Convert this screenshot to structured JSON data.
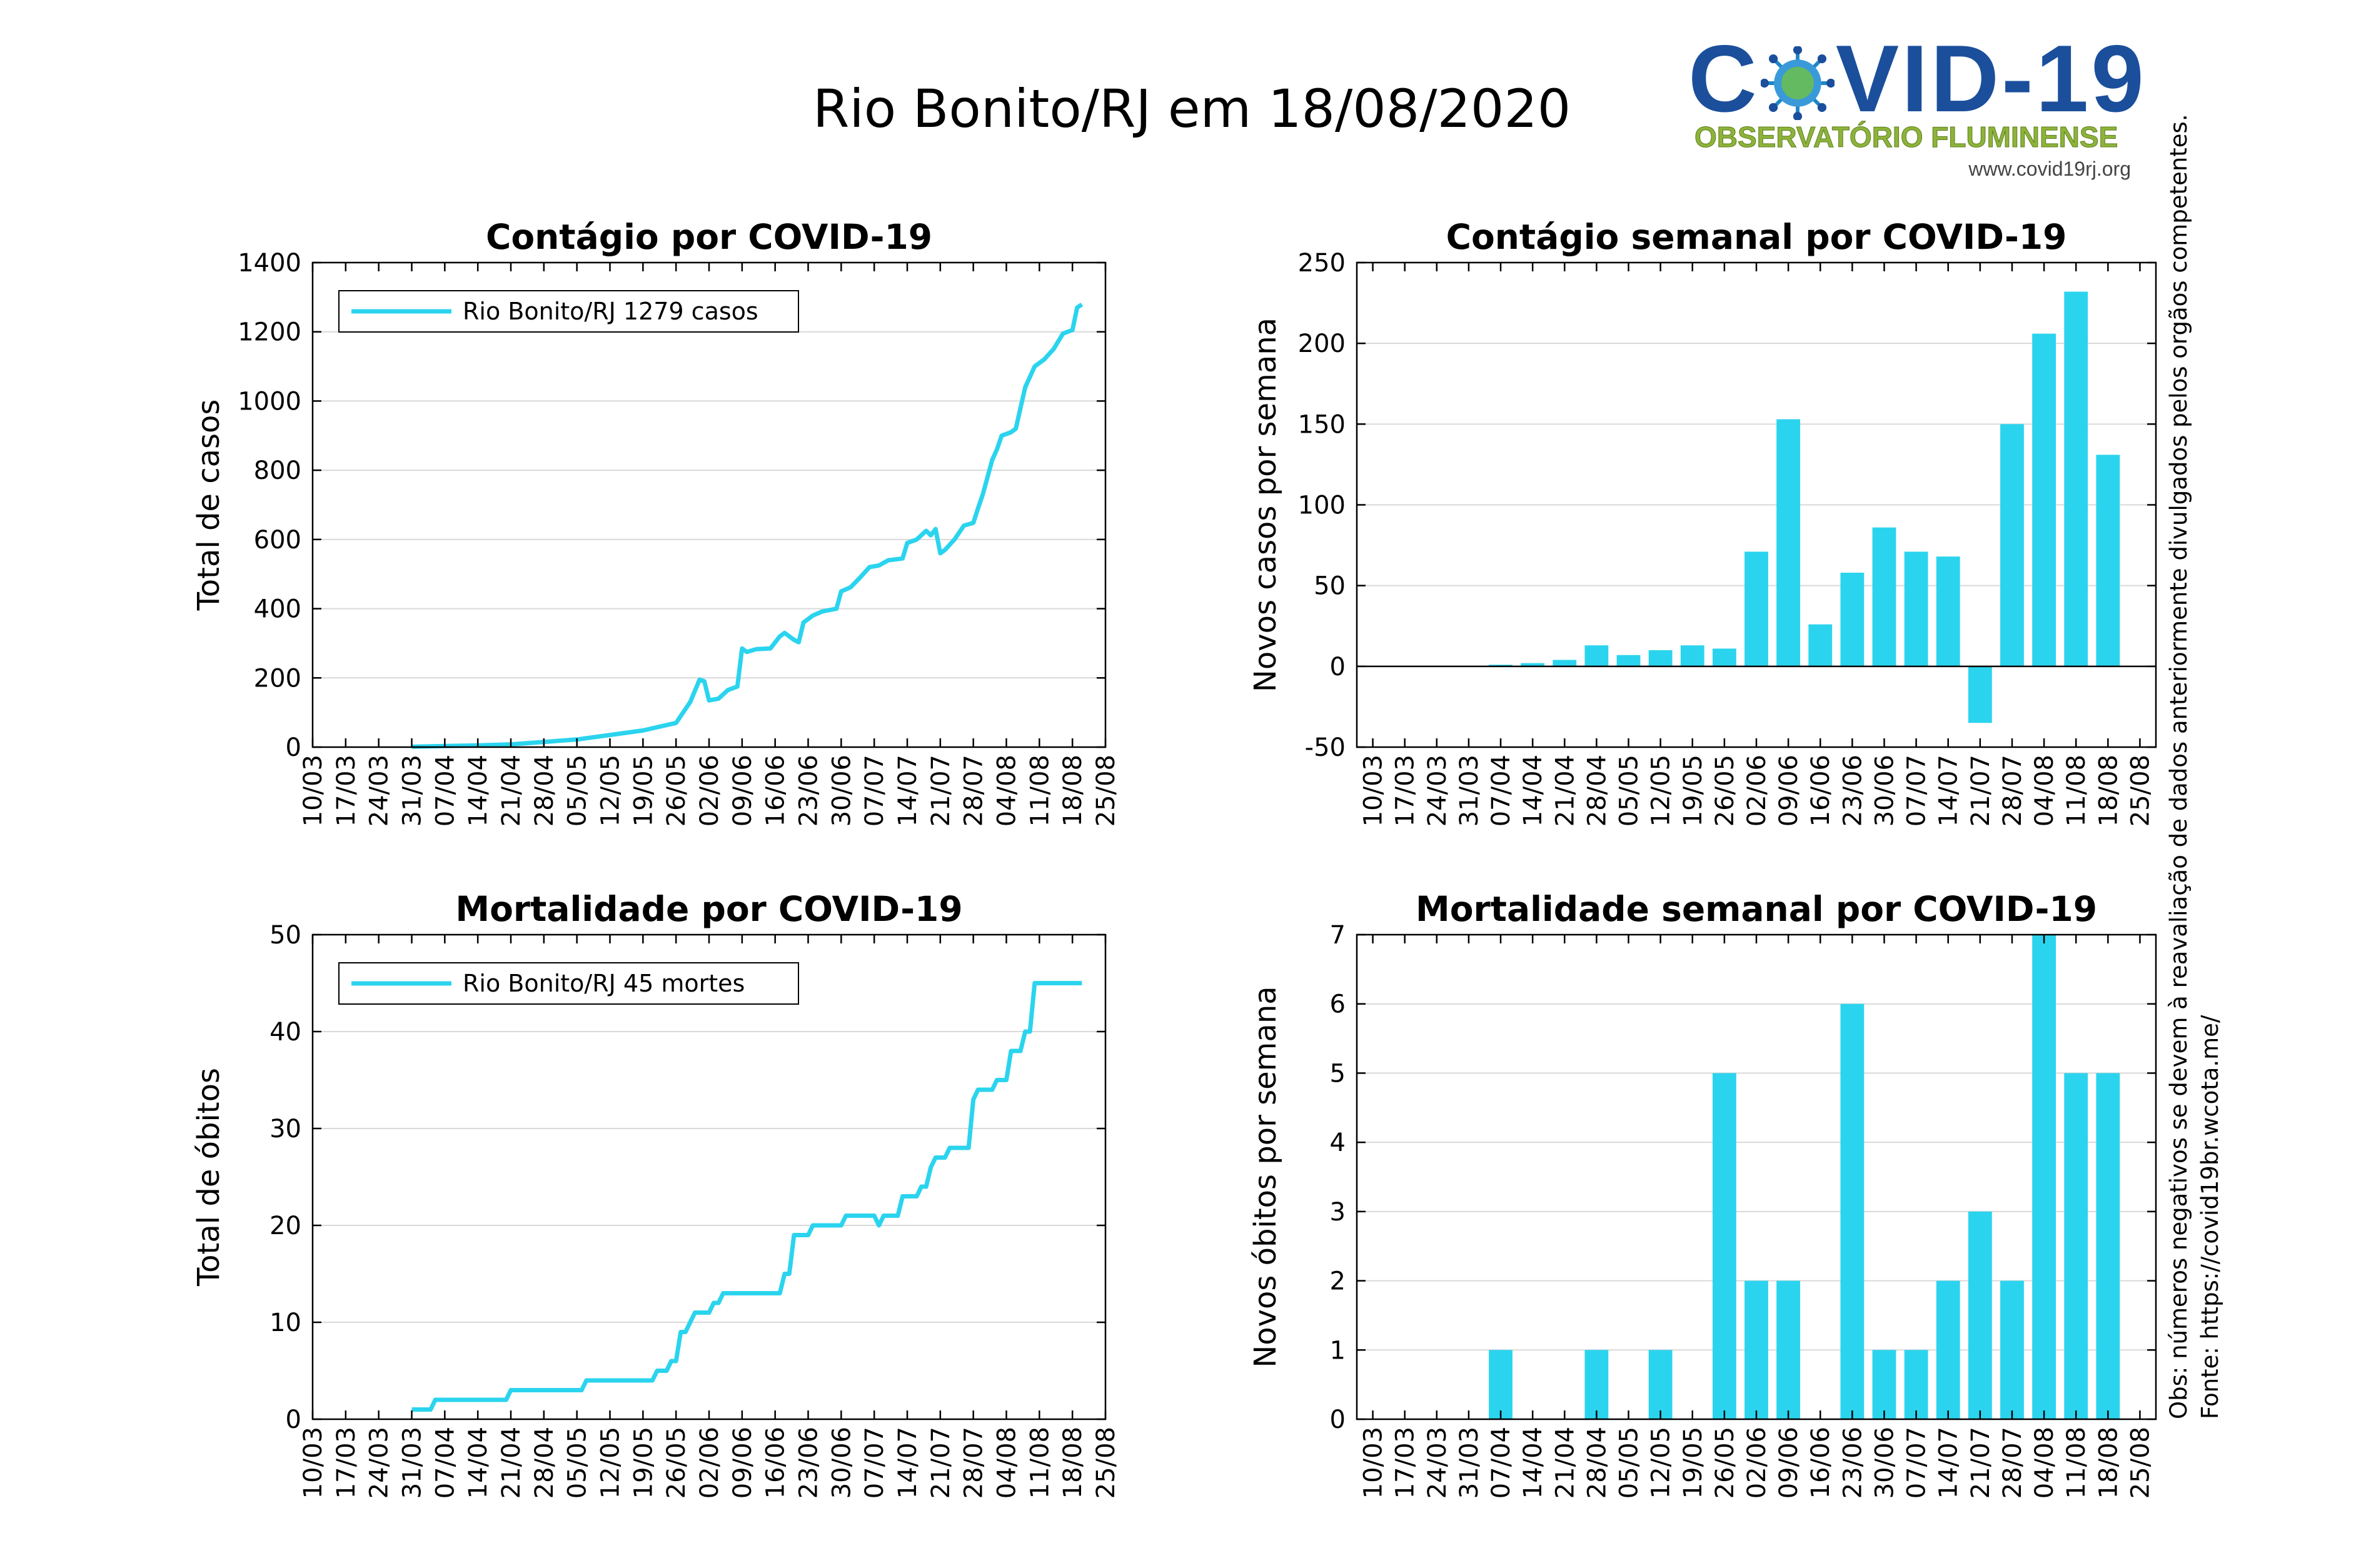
{
  "title": "Rio Bonito/RJ em 18/08/2020",
  "logo": {
    "main_before": "C",
    "main_after": "VID-19",
    "subtitle": "OBSERVATÓRIO FLUMINENSE",
    "url": "www.covid19rj.org",
    "virus_icon": "coronavirus-icon"
  },
  "notes": {
    "source": "Fonte: https://covid19br.wcota.me/",
    "obs": "Obs: números negativos se devem à reavaliação de dados anteriormente divulgados pelos orgãos competentes."
  },
  "colors": {
    "series": "#2bd4ee",
    "grid": "#d9d9d9",
    "axis": "#000000"
  },
  "chart_data": [
    {
      "id": "cum-cases",
      "type": "line",
      "title": "Contágio por COVID-19",
      "ylabel": "Total de casos",
      "ylim": [
        0,
        1400
      ],
      "yticks": [
        0,
        200,
        400,
        600,
        800,
        1000,
        1200,
        1400
      ],
      "x_ticks": [
        "10/03",
        "17/03",
        "24/03",
        "31/03",
        "07/04",
        "14/04",
        "21/04",
        "28/04",
        "05/05",
        "12/05",
        "19/05",
        "26/05",
        "02/06",
        "09/06",
        "16/06",
        "23/06",
        "30/06",
        "07/07",
        "14/07",
        "21/07",
        "28/07",
        "04/08",
        "11/08",
        "18/08",
        "25/08"
      ],
      "xlim": [
        "10/03",
        "25/08"
      ],
      "grid": "horizontal",
      "legend": {
        "position": "top-left",
        "label": "Rio Bonito/RJ  1279 casos"
      },
      "series": [
        {
          "name": "Rio Bonito/RJ",
          "points": [
            [
              "31/03",
              1
            ],
            [
              "07/04",
              3
            ],
            [
              "14/04",
              5
            ],
            [
              "21/04",
              8
            ],
            [
              "28/04",
              15
            ],
            [
              "05/05",
              22
            ],
            [
              "12/05",
              35
            ],
            [
              "19/05",
              48
            ],
            [
              "26/05",
              70
            ],
            [
              "29/05",
              130
            ],
            [
              "31/05",
              195
            ],
            [
              "01/06",
              190
            ],
            [
              "02/06",
              135
            ],
            [
              "04/06",
              140
            ],
            [
              "06/06",
              165
            ],
            [
              "08/06",
              175
            ],
            [
              "09/06",
              285
            ],
            [
              "10/06",
              275
            ],
            [
              "12/06",
              283
            ],
            [
              "15/06",
              285
            ],
            [
              "17/06",
              320
            ],
            [
              "18/06",
              330
            ],
            [
              "20/06",
              310
            ],
            [
              "21/06",
              303
            ],
            [
              "22/06",
              360
            ],
            [
              "24/06",
              380
            ],
            [
              "26/06",
              392
            ],
            [
              "29/06",
              400
            ],
            [
              "30/06",
              450
            ],
            [
              "02/07",
              462
            ],
            [
              "04/07",
              490
            ],
            [
              "06/07",
              520
            ],
            [
              "08/07",
              525
            ],
            [
              "10/07",
              540
            ],
            [
              "13/07",
              545
            ],
            [
              "14/07",
              590
            ],
            [
              "16/07",
              600
            ],
            [
              "18/07",
              625
            ],
            [
              "19/07",
              612
            ],
            [
              "20/07",
              630
            ],
            [
              "21/07",
              560
            ],
            [
              "22/07",
              570
            ],
            [
              "24/07",
              600
            ],
            [
              "26/07",
              640
            ],
            [
              "28/07",
              648
            ],
            [
              "29/07",
              690
            ],
            [
              "30/07",
              730
            ],
            [
              "01/08",
              830
            ],
            [
              "02/08",
              860
            ],
            [
              "03/08",
              900
            ],
            [
              "05/08",
              910
            ],
            [
              "06/08",
              920
            ],
            [
              "07/08",
              980
            ],
            [
              "08/08",
              1040
            ],
            [
              "10/08",
              1100
            ],
            [
              "12/08",
              1120
            ],
            [
              "14/08",
              1150
            ],
            [
              "16/08",
              1195
            ],
            [
              "18/08",
              1205
            ],
            [
              "19/08",
              1270
            ],
            [
              "20/08",
              1279
            ]
          ]
        }
      ]
    },
    {
      "id": "weekly-cases",
      "type": "bar",
      "title": "Contágio semanal por COVID-19",
      "ylabel": "Novos casos por semana",
      "ylim": [
        -50,
        250
      ],
      "yticks": [
        -50,
        0,
        50,
        100,
        150,
        200,
        250
      ],
      "categories": [
        "10/03",
        "17/03",
        "24/03",
        "31/03",
        "07/04",
        "14/04",
        "21/04",
        "28/04",
        "05/05",
        "12/05",
        "19/05",
        "26/05",
        "02/06",
        "09/06",
        "16/06",
        "23/06",
        "30/06",
        "07/07",
        "14/07",
        "21/07",
        "28/07",
        "04/08",
        "11/08",
        "18/08",
        "25/08"
      ],
      "grid": "horizontal",
      "values": [
        0,
        0,
        0,
        0,
        1,
        2,
        4,
        13,
        7,
        10,
        13,
        11,
        71,
        153,
        26,
        58,
        86,
        71,
        68,
        -35,
        150,
        206,
        232,
        131,
        null
      ]
    },
    {
      "id": "cum-deaths",
      "type": "line",
      "title": "Mortalidade por COVID-19",
      "ylabel": "Total de óbitos",
      "ylim": [
        0,
        50
      ],
      "yticks": [
        0,
        10,
        20,
        30,
        40,
        50
      ],
      "x_ticks": [
        "10/03",
        "17/03",
        "24/03",
        "31/03",
        "07/04",
        "14/04",
        "21/04",
        "28/04",
        "05/05",
        "12/05",
        "19/05",
        "26/05",
        "02/06",
        "09/06",
        "16/06",
        "23/06",
        "30/06",
        "07/07",
        "14/07",
        "21/07",
        "28/07",
        "04/08",
        "11/08",
        "18/08",
        "25/08"
      ],
      "xlim": [
        "10/03",
        "25/08"
      ],
      "grid": "horizontal",
      "legend": {
        "position": "top-left",
        "label": "Rio Bonito/RJ  45 mortes"
      },
      "series": [
        {
          "name": "Rio Bonito/RJ",
          "points": [
            [
              "31/03",
              1
            ],
            [
              "04/04",
              1
            ],
            [
              "05/04",
              2
            ],
            [
              "20/04",
              2
            ],
            [
              "21/04",
              3
            ],
            [
              "06/05",
              3
            ],
            [
              "07/05",
              4
            ],
            [
              "21/05",
              4
            ],
            [
              "22/05",
              5
            ],
            [
              "24/05",
              5
            ],
            [
              "25/05",
              6
            ],
            [
              "26/05",
              6
            ],
            [
              "27/05",
              9
            ],
            [
              "28/05",
              9
            ],
            [
              "30/05",
              11
            ],
            [
              "02/06",
              11
            ],
            [
              "03/06",
              12
            ],
            [
              "04/06",
              12
            ],
            [
              "05/06",
              13
            ],
            [
              "17/06",
              13
            ],
            [
              "18/06",
              15
            ],
            [
              "19/06",
              15
            ],
            [
              "20/06",
              19
            ],
            [
              "23/06",
              19
            ],
            [
              "24/06",
              20
            ],
            [
              "29/06",
              20
            ],
            [
              "30/06",
              20
            ],
            [
              "01/07",
              21
            ],
            [
              "07/07",
              21
            ],
            [
              "08/07",
              20
            ],
            [
              "09/07",
              21
            ],
            [
              "12/07",
              21
            ],
            [
              "13/07",
              23
            ],
            [
              "16/07",
              23
            ],
            [
              "17/07",
              24
            ],
            [
              "18/07",
              24
            ],
            [
              "19/07",
              26
            ],
            [
              "20/07",
              27
            ],
            [
              "22/07",
              27
            ],
            [
              "23/07",
              28
            ],
            [
              "27/07",
              28
            ],
            [
              "28/07",
              33
            ],
            [
              "29/07",
              34
            ],
            [
              "01/08",
              34
            ],
            [
              "02/08",
              35
            ],
            [
              "04/08",
              35
            ],
            [
              "05/08",
              38
            ],
            [
              "07/08",
              38
            ],
            [
              "08/08",
              40
            ],
            [
              "09/08",
              40
            ],
            [
              "10/08",
              45
            ],
            [
              "20/08",
              45
            ]
          ]
        }
      ]
    },
    {
      "id": "weekly-deaths",
      "type": "bar",
      "title": "Mortalidade semanal por COVID-19",
      "ylabel": "Novos óbitos por semana",
      "ylim": [
        0,
        7
      ],
      "yticks": [
        0,
        1,
        2,
        3,
        4,
        5,
        6,
        7
      ],
      "categories": [
        "10/03",
        "17/03",
        "24/03",
        "31/03",
        "07/04",
        "14/04",
        "21/04",
        "28/04",
        "05/05",
        "12/05",
        "19/05",
        "26/05",
        "02/06",
        "09/06",
        "16/06",
        "23/06",
        "30/06",
        "07/07",
        "14/07",
        "21/07",
        "28/07",
        "04/08",
        "11/08",
        "18/08",
        "25/08"
      ],
      "grid": "horizontal",
      "values": [
        0,
        0,
        0,
        0,
        1,
        0,
        0,
        1,
        0,
        1,
        0,
        5,
        2,
        2,
        0,
        6,
        1,
        1,
        2,
        3,
        2,
        7,
        5,
        5,
        null
      ]
    }
  ]
}
